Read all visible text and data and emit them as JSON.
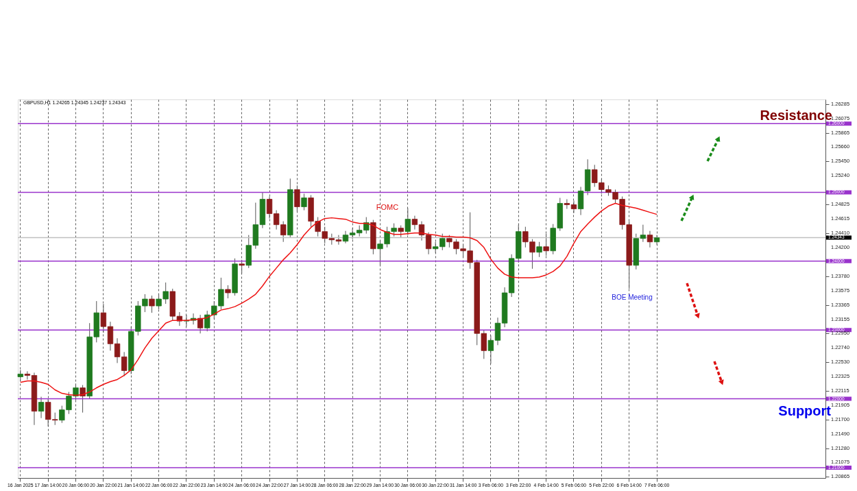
{
  "chart_data": {
    "type": "candlestick",
    "categories": [
      "16 Jan 2025",
      null,
      null,
      null,
      "17 Jan 14:00",
      null,
      null,
      null,
      "20 Jan 06:00",
      null,
      null,
      null,
      "20 Jan 22:00",
      null,
      null,
      null,
      "21 Jan 14:00",
      null,
      null,
      null,
      "22 Jan 06:00",
      null,
      null,
      null,
      "22 Jan 22:00",
      null,
      null,
      null,
      "23 Jan 14:00",
      null,
      null,
      null,
      "24 Jan 06:00",
      null,
      null,
      null,
      "24 Jan 22:00",
      null,
      null,
      null,
      "27 Jan 14:00",
      null,
      null,
      null,
      "28 Jan 06:00",
      null,
      null,
      null,
      "28 Jan 22:00",
      null,
      null,
      null,
      "29 Jan 14:00",
      null,
      null,
      null,
      "30 Jan 06:00",
      null,
      null,
      null,
      "30 Jan 22:00",
      null,
      null,
      null,
      "31 Jan 14:00",
      null,
      null,
      null,
      "3 Feb 06:00",
      null,
      null,
      null,
      "3 Feb 22:00",
      null,
      null,
      null,
      "4 Feb 14:00",
      null,
      null,
      null,
      "5 Feb 06:00",
      null,
      null,
      null,
      "5 Feb 22:00",
      null,
      null,
      null,
      "6 Feb 14:00",
      null,
      null,
      null,
      "7 Feb 06:00"
    ],
    "ohlc": [
      [
        1.2232,
        1.2242,
        1.2226,
        1.2236
      ],
      [
        1.2236,
        1.224,
        1.2228,
        1.2234
      ],
      [
        1.2234,
        1.2238,
        1.2162,
        1.2182
      ],
      [
        1.2182,
        1.2203,
        1.2172,
        1.2195
      ],
      [
        1.2195,
        1.22,
        1.216,
        1.217
      ],
      [
        1.217,
        1.218,
        1.2162,
        1.2169
      ],
      [
        1.2169,
        1.219,
        1.2165,
        1.2184
      ],
      [
        1.2184,
        1.221,
        1.2178,
        1.2204
      ],
      [
        1.2204,
        1.2222,
        1.2198,
        1.2216
      ],
      [
        1.2216,
        1.222,
        1.218,
        1.2204
      ],
      [
        1.2204,
        1.231,
        1.22,
        1.229
      ],
      [
        1.229,
        1.2342,
        1.2282,
        1.2325
      ],
      [
        1.2325,
        1.2338,
        1.2296,
        1.2305
      ],
      [
        1.2305,
        1.2312,
        1.227,
        1.228
      ],
      [
        1.228,
        1.2288,
        1.2252,
        1.2261
      ],
      [
        1.2261,
        1.2268,
        1.2233,
        1.2241
      ],
      [
        1.2241,
        1.2305,
        1.2236,
        1.2298
      ],
      [
        1.2298,
        1.2342,
        1.2292,
        1.2335
      ],
      [
        1.2335,
        1.2352,
        1.2326,
        1.2345
      ],
      [
        1.2345,
        1.235,
        1.2325,
        1.2335
      ],
      [
        1.2335,
        1.2352,
        1.233,
        1.2345
      ],
      [
        1.2345,
        1.2369,
        1.2338,
        1.2356
      ],
      [
        1.2356,
        1.236,
        1.2314,
        1.232
      ],
      [
        1.232,
        1.2326,
        1.2306,
        1.2313
      ],
      [
        1.2313,
        1.2322,
        1.2305,
        1.2314
      ],
      [
        1.2314,
        1.2324,
        1.2308,
        1.2317
      ],
      [
        1.2317,
        1.2322,
        1.2295,
        1.2303
      ],
      [
        1.2303,
        1.2328,
        1.2298,
        1.2322
      ],
      [
        1.2322,
        1.2342,
        1.2316,
        1.2335
      ],
      [
        1.2335,
        1.2376,
        1.233,
        1.2359
      ],
      [
        1.2359,
        1.2365,
        1.2346,
        1.2354
      ],
      [
        1.2354,
        1.2404,
        1.235,
        1.2396
      ],
      [
        1.2396,
        1.2402,
        1.2382,
        1.2394
      ],
      [
        1.2394,
        1.2438,
        1.239,
        1.2423
      ],
      [
        1.2423,
        1.2485,
        1.2418,
        1.2453
      ],
      [
        1.2453,
        1.25,
        1.2448,
        1.249
      ],
      [
        1.249,
        1.2494,
        1.2462,
        1.2469
      ],
      [
        1.2469,
        1.2474,
        1.2446,
        1.2453
      ],
      [
        1.2453,
        1.2458,
        1.2428,
        1.2438
      ],
      [
        1.2438,
        1.252,
        1.2434,
        1.2504
      ],
      [
        1.2504,
        1.251,
        1.2472,
        1.2479
      ],
      [
        1.2479,
        1.2498,
        1.2474,
        1.2492
      ],
      [
        1.2492,
        1.2496,
        1.245,
        1.2458
      ],
      [
        1.2458,
        1.2464,
        1.2436,
        1.2443
      ],
      [
        1.2443,
        1.245,
        1.2426,
        1.2433
      ],
      [
        1.2433,
        1.244,
        1.2424,
        1.2431
      ],
      [
        1.2431,
        1.2438,
        1.2424,
        1.2429
      ],
      [
        1.2429,
        1.2444,
        1.2426,
        1.2438
      ],
      [
        1.2438,
        1.2448,
        1.2432,
        1.2441
      ],
      [
        1.2441,
        1.2452,
        1.2436,
        1.2445
      ],
      [
        1.2445,
        1.2464,
        1.244,
        1.2456
      ],
      [
        1.2456,
        1.246,
        1.241,
        1.2418
      ],
      [
        1.2418,
        1.243,
        1.2394,
        1.2425
      ],
      [
        1.2425,
        1.245,
        1.242,
        1.2443
      ],
      [
        1.2443,
        1.2455,
        1.2436,
        1.2448
      ],
      [
        1.2448,
        1.2452,
        1.2434,
        1.2443
      ],
      [
        1.2443,
        1.2477,
        1.2438,
        1.2461
      ],
      [
        1.2461,
        1.2466,
        1.2446,
        1.2453
      ],
      [
        1.2453,
        1.2458,
        1.243,
        1.2438
      ],
      [
        1.2438,
        1.2442,
        1.241,
        1.2418
      ],
      [
        1.2418,
        1.2428,
        1.2412,
        1.2421
      ],
      [
        1.2421,
        1.244,
        1.2416,
        1.2433
      ],
      [
        1.2433,
        1.2438,
        1.242,
        1.2428
      ],
      [
        1.2428,
        1.2432,
        1.241,
        1.2418
      ],
      [
        1.2418,
        1.2425,
        1.2405,
        1.2415
      ],
      [
        1.2415,
        1.2471,
        1.2389,
        1.2398
      ],
      [
        1.2398,
        1.2402,
        1.2278,
        1.2295
      ],
      [
        1.2295,
        1.23,
        1.2258,
        1.227
      ],
      [
        1.227,
        1.2292,
        1.2251,
        1.2285
      ],
      [
        1.2285,
        1.2318,
        1.2278,
        1.231
      ],
      [
        1.231,
        1.2362,
        1.2304,
        1.2354
      ],
      [
        1.2354,
        1.241,
        1.2348,
        1.2404
      ],
      [
        1.2404,
        1.2453,
        1.2398,
        1.2443
      ],
      [
        1.2443,
        1.245,
        1.242,
        1.2428
      ],
      [
        1.2428,
        1.2432,
        1.2389,
        1.2413
      ],
      [
        1.2413,
        1.2428,
        1.2406,
        1.2421
      ],
      [
        1.2421,
        1.244,
        1.2408,
        1.2415
      ],
      [
        1.2415,
        1.2454,
        1.241,
        1.2448
      ],
      [
        1.2448,
        1.2492,
        1.2444,
        1.2484
      ],
      [
        1.2484,
        1.249,
        1.2476,
        1.2482
      ],
      [
        1.2482,
        1.2488,
        1.247,
        1.2476
      ],
      [
        1.2476,
        1.2508,
        1.2467,
        1.2502
      ],
      [
        1.2502,
        1.2548,
        1.2496,
        1.2533
      ],
      [
        1.2533,
        1.254,
        1.2508,
        1.2514
      ],
      [
        1.2514,
        1.252,
        1.2498,
        1.2504
      ],
      [
        1.2504,
        1.251,
        1.2495,
        1.25
      ],
      [
        1.25,
        1.2504,
        1.2484,
        1.249
      ],
      [
        1.249,
        1.2494,
        1.2446,
        1.2453
      ],
      [
        1.2453,
        1.2458,
        1.236,
        1.2394
      ],
      [
        1.2394,
        1.244,
        1.2388,
        1.2433
      ],
      [
        1.2433,
        1.2453,
        1.2428,
        1.2438
      ],
      [
        1.2438,
        1.2444,
        1.242,
        1.2428
      ],
      [
        1.2428,
        1.2438,
        1.2424,
        1.2434
      ]
    ],
    "series": [
      {
        "type": "line",
        "color": "#ee1111",
        "values": [
          1.2224,
          1.2226,
          1.2226,
          1.2224,
          1.2221,
          1.2213,
          1.2208,
          1.2206,
          1.2205,
          1.2206,
          1.221,
          1.2216,
          1.2221,
          1.2225,
          1.2228,
          1.2234,
          1.2242,
          1.2257,
          1.2274,
          1.2288,
          1.2299,
          1.231,
          1.2314,
          1.2314,
          1.2314,
          1.2315,
          1.2316,
          1.2318,
          1.2323,
          1.2329,
          1.2331,
          1.2334,
          1.2339,
          1.2345,
          1.2352,
          1.2364,
          1.2378,
          1.239,
          1.2402,
          1.2412,
          1.2424,
          1.2438,
          1.2449,
          1.2457,
          1.2462,
          1.2463,
          1.2462,
          1.2461,
          1.2457,
          1.2455,
          1.2455,
          1.2452,
          1.2446,
          1.2442,
          1.2439,
          1.2439,
          1.244,
          1.2441,
          1.2441,
          1.2439,
          1.2438,
          1.2436,
          1.2436,
          1.2435,
          1.2435,
          1.2434,
          1.243,
          1.242,
          1.2403,
          1.239,
          1.2381,
          1.2377,
          1.2376,
          1.2376,
          1.2376,
          1.2377,
          1.238,
          1.2385,
          1.2393,
          1.2407,
          1.2426,
          1.2443,
          1.2454,
          1.2464,
          1.2473,
          1.248,
          1.2484,
          1.2481,
          1.2479,
          1.2477,
          1.2474,
          1.2471,
          1.2468
        ]
      }
    ],
    "ylim": [
      1.2085,
      1.2635
    ],
    "yticks": [
      {
        "value": 1.26285,
        "label": "1.26285"
      },
      {
        "value": 1.26075,
        "label": "1.26075"
      },
      {
        "value": 1.25865,
        "label": "1.25865"
      },
      {
        "value": 1.2566,
        "label": "1.25660"
      },
      {
        "value": 1.2545,
        "label": "1.25450"
      },
      {
        "value": 1.2524,
        "label": "1.25240"
      },
      {
        "value": 1.24825,
        "label": "1.24825"
      },
      {
        "value": 1.24615,
        "label": "1.24615"
      },
      {
        "value": 1.2441,
        "label": "1.24410"
      },
      {
        "value": 1.242,
        "label": "1.24200"
      },
      {
        "value": 1.2378,
        "label": "1.23780"
      },
      {
        "value": 1.23575,
        "label": "1.23575"
      },
      {
        "value": 1.23365,
        "label": "1.23365"
      },
      {
        "value": 1.23155,
        "label": "1.23155"
      },
      {
        "value": 1.2295,
        "label": "1.22950"
      },
      {
        "value": 1.2274,
        "label": "1.22740"
      },
      {
        "value": 1.2253,
        "label": "1.22530"
      },
      {
        "value": 1.22325,
        "label": "1.22325"
      },
      {
        "value": 1.22115,
        "label": "1.22115"
      },
      {
        "value": 1.21905,
        "label": "1.21905"
      },
      {
        "value": 1.217,
        "label": "1.21700"
      },
      {
        "value": 1.2149,
        "label": "1.21490"
      },
      {
        "value": 1.2128,
        "label": "1.21280"
      },
      {
        "value": 1.21075,
        "label": "1.21075"
      },
      {
        "value": 1.20865,
        "label": "1.20865"
      }
    ],
    "ref_lines": [
      {
        "axis": "y",
        "value": 1.26,
        "label": "1.26000",
        "color": "#9933cc"
      },
      {
        "axis": "y",
        "value": 1.25,
        "label": "1.25000",
        "color": "#9933cc"
      },
      {
        "axis": "y",
        "value": 1.24,
        "label": "1.24000",
        "color": "#9933cc"
      },
      {
        "axis": "y",
        "value": 1.23,
        "label": "1.23000",
        "color": "#9933cc"
      },
      {
        "axis": "y",
        "value": 1.22,
        "label": "1.22000",
        "color": "#9933cc"
      },
      {
        "axis": "y",
        "value": 1.21,
        "label": "1.21000",
        "color": "#9933cc"
      },
      {
        "axis": "y",
        "value": 1.24343,
        "label": "1.24343",
        "color": "#c0c0c0"
      }
    ],
    "annotations": [
      "GBPUSD,H1  1.24265 1.24345 1.24237 1.24343",
      "FOMC",
      "BOE Meeting",
      "Resistance",
      "Support"
    ],
    "grid": "x"
  }
}
